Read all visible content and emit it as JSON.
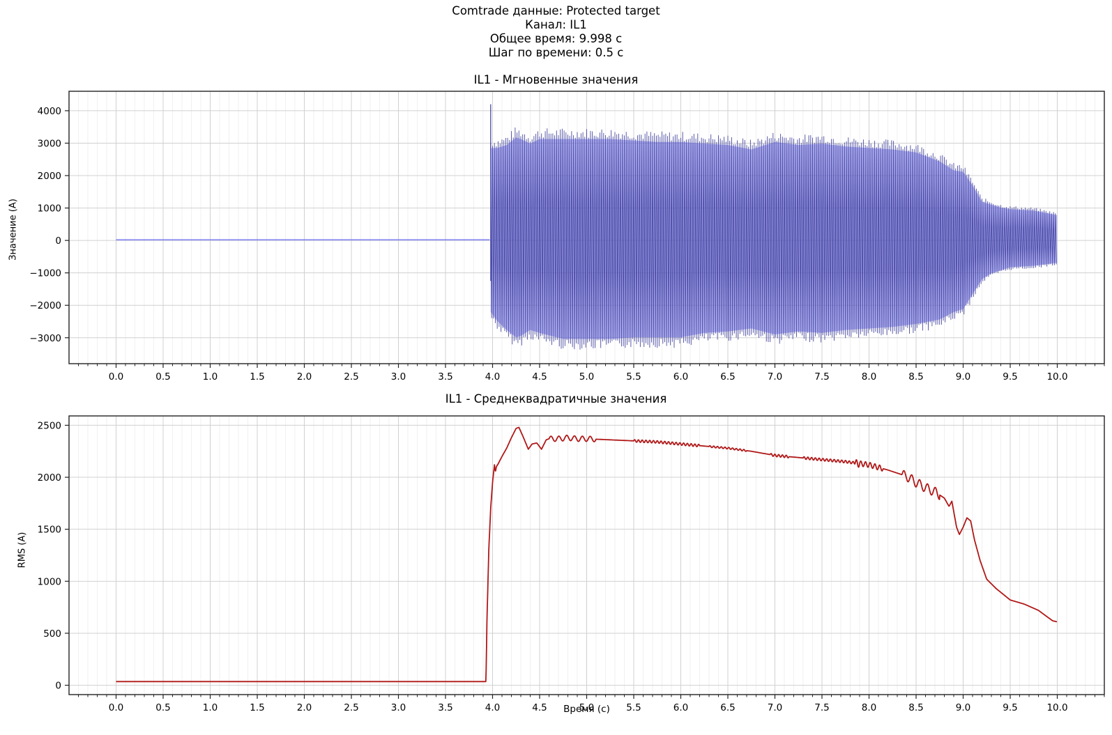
{
  "figure": {
    "suptitle_lines": [
      "Comtrade данные: Protected target",
      "Канал: IL1",
      "Общее время: 9.998 с",
      "Шаг по времени: 0.5 с"
    ]
  },
  "colors": {
    "instantaneous_line": "#3b3b9a",
    "instantaneous_fill": "#7b7bf0",
    "rms_line": "#b01818",
    "grid_major": "#d0d0d0",
    "grid_minor": "#ececec",
    "axes": "#222222"
  },
  "chart_data": [
    {
      "type": "line",
      "title": "IL1 - Мгновенные значения",
      "xlabel": "",
      "ylabel": "Значение (A)",
      "xlim": [
        -0.5,
        10.5
      ],
      "ylim": [
        -3800,
        4600
      ],
      "xticks": [
        0.0,
        0.5,
        1.0,
        1.5,
        2.0,
        2.5,
        3.0,
        3.5,
        4.0,
        4.5,
        5.0,
        5.5,
        6.0,
        6.5,
        7.0,
        7.5,
        8.0,
        8.5,
        9.0,
        9.5,
        10.0
      ],
      "xtick_labels": [
        "0.0",
        "0.5",
        "1.0",
        "1.5",
        "2.0",
        "2.5",
        "3.0",
        "3.5",
        "4.0",
        "4.5",
        "5.0",
        "5.5",
        "6.0",
        "6.5",
        "7.0",
        "7.5",
        "8.0",
        "8.5",
        "9.0",
        "9.5",
        "10.0"
      ],
      "minor_xtick_step": 0.1,
      "yticks": [
        -3000,
        -2000,
        -1000,
        0,
        1000,
        2000,
        3000,
        4000
      ],
      "ytick_labels": [
        "−3000",
        "−2000",
        "−1000",
        "0",
        "1000",
        "2000",
        "3000",
        "4000"
      ],
      "grid": true,
      "series": [
        {
          "name": "IL1",
          "description": "Sinusoidal current (approx. 50 Hz); ~0 A before fault at ~3.97 s, then oscillates with envelope below; initial spike to ~4200 A",
          "fault_start_s": 3.97,
          "pre_fault_value": 20,
          "initial_spike": {
            "t": 3.98,
            "max": 4200,
            "min": -1250
          },
          "envelope": {
            "t": [
              3.98,
              4.05,
              4.15,
              4.25,
              4.3,
              4.4,
              4.5,
              4.75,
              5.0,
              5.25,
              5.5,
              5.75,
              6.0,
              6.25,
              6.5,
              6.75,
              7.0,
              7.25,
              7.5,
              7.75,
              8.0,
              8.25,
              8.5,
              8.75,
              8.9,
              9.0,
              9.1,
              9.2,
              9.3,
              9.4,
              9.5,
              9.75,
              9.998
            ],
            "max": [
              3100,
              3100,
              3200,
              3450,
              3400,
              3250,
              3400,
              3400,
              3400,
              3400,
              3350,
              3300,
              3300,
              3250,
              3200,
              3050,
              3300,
              3200,
              3250,
              3150,
              3100,
              3050,
              2950,
              2650,
              2350,
              2300,
              1850,
              1300,
              1200,
              1100,
              1050,
              1000,
              850
            ],
            "min": [
              -2400,
              -2700,
              -3000,
              -3250,
              -3200,
              -3000,
              -3100,
              -3300,
              -3300,
              -3300,
              -3250,
              -3250,
              -3250,
              -3100,
              -3050,
              -2950,
              -3150,
              -3050,
              -3100,
              -3000,
              -2950,
              -2900,
              -2800,
              -2650,
              -2400,
              -2300,
              -1800,
              -1300,
              -1100,
              -1000,
              -900,
              -850,
              -750
            ]
          },
          "frequency_hz": 50
        }
      ]
    },
    {
      "type": "line",
      "title": "IL1 - Среднеквадратичные значения",
      "xlabel": "Время (с)",
      "ylabel": "RMS (A)",
      "xlim": [
        -0.5,
        10.5
      ],
      "ylim": [
        -90,
        2590
      ],
      "xticks": [
        0.0,
        0.5,
        1.0,
        1.5,
        2.0,
        2.5,
        3.0,
        3.5,
        4.0,
        4.5,
        5.0,
        5.5,
        6.0,
        6.5,
        7.0,
        7.5,
        8.0,
        8.5,
        9.0,
        9.5,
        10.0
      ],
      "xtick_labels": [
        "0.0",
        "0.5",
        "1.0",
        "1.5",
        "2.0",
        "2.5",
        "3.0",
        "3.5",
        "4.0",
        "4.5",
        "5.0",
        "5.5",
        "6.0",
        "6.5",
        "7.0",
        "7.5",
        "8.0",
        "8.5",
        "9.0",
        "9.5",
        "10.0"
      ],
      "minor_xtick_step": 0.1,
      "yticks": [
        0,
        500,
        1000,
        1500,
        2000,
        2500
      ],
      "ytick_labels": [
        "0",
        "500",
        "1000",
        "1500",
        "2000",
        "2500"
      ],
      "grid": true,
      "series": [
        {
          "name": "IL1 RMS",
          "x": [
            0.0,
            3.93,
            3.94,
            3.96,
            3.98,
            4.0,
            4.02,
            4.03,
            4.04,
            4.06,
            4.1,
            4.15,
            4.2,
            4.25,
            4.28,
            4.32,
            4.38,
            4.42,
            4.47,
            4.52,
            4.57,
            4.6,
            4.7,
            4.8,
            4.9,
            5.0,
            5.25,
            5.5,
            5.75,
            6.0,
            6.25,
            6.5,
            6.75,
            7.0,
            7.25,
            7.5,
            7.75,
            8.0,
            8.2,
            8.4,
            8.5,
            8.6,
            8.7,
            8.8,
            8.85,
            8.88,
            8.93,
            8.96,
            9.0,
            9.04,
            9.08,
            9.12,
            9.18,
            9.25,
            9.35,
            9.5,
            9.65,
            9.8,
            9.95,
            9.998
          ],
          "y": [
            35,
            35,
            600,
            1300,
            1700,
            1950,
            2120,
            2050,
            2100,
            2130,
            2200,
            2280,
            2380,
            2470,
            2480,
            2400,
            2270,
            2320,
            2330,
            2270,
            2360,
            2370,
            2370,
            2380,
            2370,
            2370,
            2360,
            2350,
            2340,
            2320,
            2300,
            2280,
            2250,
            2210,
            2190,
            2170,
            2150,
            2120,
            2070,
            2010,
            1950,
            1900,
            1860,
            1800,
            1720,
            1770,
            1520,
            1450,
            1520,
            1610,
            1580,
            1400,
            1200,
            1020,
            930,
            820,
            780,
            720,
            620,
            610
          ],
          "ripple": [
            {
              "from": 4.6,
              "to": 5.1,
              "amp": 25,
              "freq": 12
            },
            {
              "from": 5.5,
              "to": 6.2,
              "amp": 12,
              "freq": 25
            },
            {
              "from": 6.3,
              "to": 6.7,
              "amp": 8,
              "freq": 25
            },
            {
              "from": 6.95,
              "to": 7.15,
              "amp": 12,
              "freq": 25
            },
            {
              "from": 7.3,
              "to": 7.9,
              "amp": 12,
              "freq": 25
            },
            {
              "from": 7.85,
              "to": 8.15,
              "amp": 25,
              "freq": 20
            },
            {
              "from": 8.35,
              "to": 8.75,
              "amp": 45,
              "freq": 12
            }
          ]
        }
      ]
    }
  ]
}
